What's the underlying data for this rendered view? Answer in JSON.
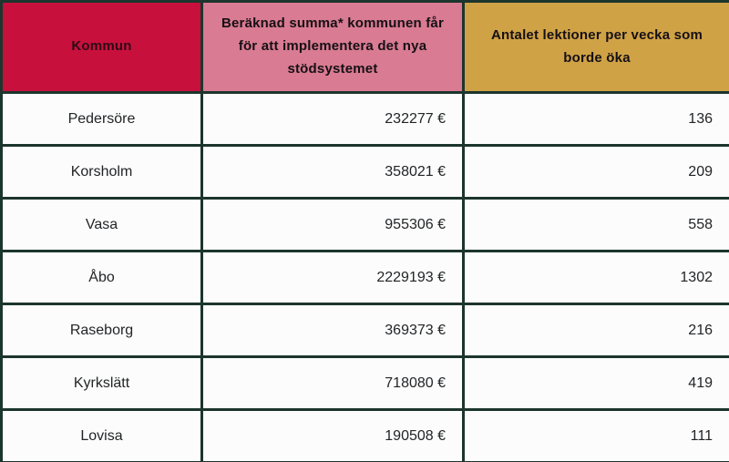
{
  "table": {
    "columns": [
      {
        "label": "Kommun",
        "bg": "#c8103c",
        "text_color": "#2e0a16"
      },
      {
        "label": "Beräknad summa* kommunen får för att implementera det nya stödsystemet",
        "bg": "#d97b92",
        "text_color": "#151015"
      },
      {
        "label": "Antalet lektioner per vecka som borde öka",
        "bg": "#d0a246",
        "text_color": "#151015"
      }
    ],
    "rows": [
      {
        "kommun": "Pedersöre",
        "summa": "232277 €",
        "lektioner": "136"
      },
      {
        "kommun": "Korsholm",
        "summa": "358021 €",
        "lektioner": "209"
      },
      {
        "kommun": "Vasa",
        "summa": "955306 €",
        "lektioner": "558"
      },
      {
        "kommun": "Åbo",
        "summa": "2229193 €",
        "lektioner": "1302"
      },
      {
        "kommun": "Raseborg",
        "summa": "369373 €",
        "lektioner": "216"
      },
      {
        "kommun": "Kyrkslätt",
        "summa": "718080 €",
        "lektioner": "419"
      },
      {
        "kommun": "Lovisa",
        "summa": "190508 €",
        "lektioner": "111"
      }
    ]
  },
  "chart_data": {
    "type": "table",
    "title": "",
    "columns": [
      "Kommun",
      "Beräknad summa* kommunen får för att implementera det nya stödsystemet",
      "Antalet lektioner per vecka som borde öka"
    ],
    "rows": [
      [
        "Pedersöre",
        "232277 €",
        136
      ],
      [
        "Korsholm",
        "358021 €",
        209
      ],
      [
        "Vasa",
        "955306 €",
        558
      ],
      [
        "Åbo",
        "2229193 €",
        1302
      ],
      [
        "Raseborg",
        "369373 €",
        216
      ],
      [
        "Kyrkslätt",
        "718080 €",
        419
      ],
      [
        "Lovisa",
        "190508 €",
        111
      ]
    ],
    "summa_values_eur": [
      232277,
      358021,
      955306,
      2229193,
      369373,
      718080,
      190508
    ],
    "lektioner_values": [
      136,
      209,
      558,
      1302,
      216,
      419,
      111
    ],
    "currency_symbol": "€"
  },
  "colors": {
    "header_red": "#c8103c",
    "header_pink": "#d97b92",
    "header_gold": "#d0a246",
    "border": "#1c352d",
    "cell_background": "#fcfcfc",
    "body_text": "#222426"
  }
}
